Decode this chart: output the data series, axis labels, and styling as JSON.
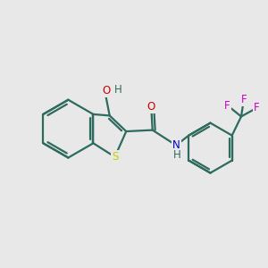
{
  "background_color": "#e8e8e8",
  "bond_color": "#2d6b5e",
  "bond_width": 1.6,
  "atom_colors": {
    "S": "#cccc00",
    "O": "#cc0000",
    "N": "#0000cc",
    "F": "#cc00cc",
    "H": "#2d6b5e"
  },
  "font_size": 8.5,
  "figsize": [
    3.0,
    3.0
  ],
  "dpi": 100
}
